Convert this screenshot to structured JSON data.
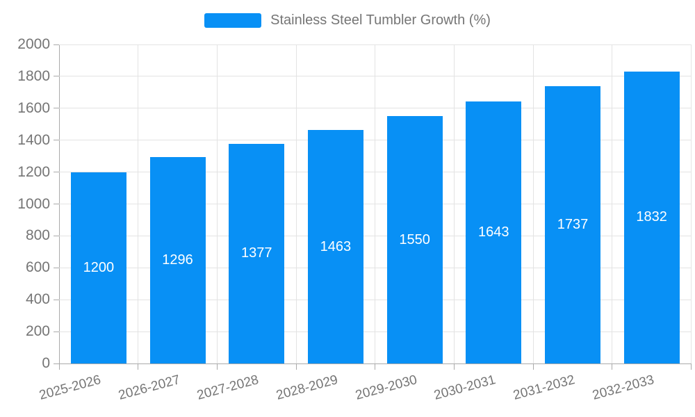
{
  "legend": {
    "label": "Stainless Steel Tumbler Growth (%)"
  },
  "colors": {
    "bar": "#0890f5",
    "grid": "#e3e3e3",
    "axis": "#aaaaaa",
    "tick_label": "#757575",
    "value_label": "#ffffff"
  },
  "chart_data": {
    "type": "bar",
    "title": "",
    "xlabel": "",
    "ylabel": "",
    "categories": [
      "2025-2026",
      "2026-2027",
      "2027-2028",
      "2028-2029",
      "2029-2030",
      "2030-2031",
      "2031-2032",
      "2032-2033"
    ],
    "series": [
      {
        "name": "Stainless Steel Tumbler Growth (%)",
        "values": [
          1200,
          1296,
          1377,
          1463,
          1550,
          1643,
          1737,
          1832
        ]
      }
    ],
    "ylim": [
      0,
      2000
    ],
    "ytick_step": 200,
    "grid": true,
    "legend_position": "top-center",
    "value_labels": "inside-middle",
    "xtick_rotation_deg": 15
  }
}
